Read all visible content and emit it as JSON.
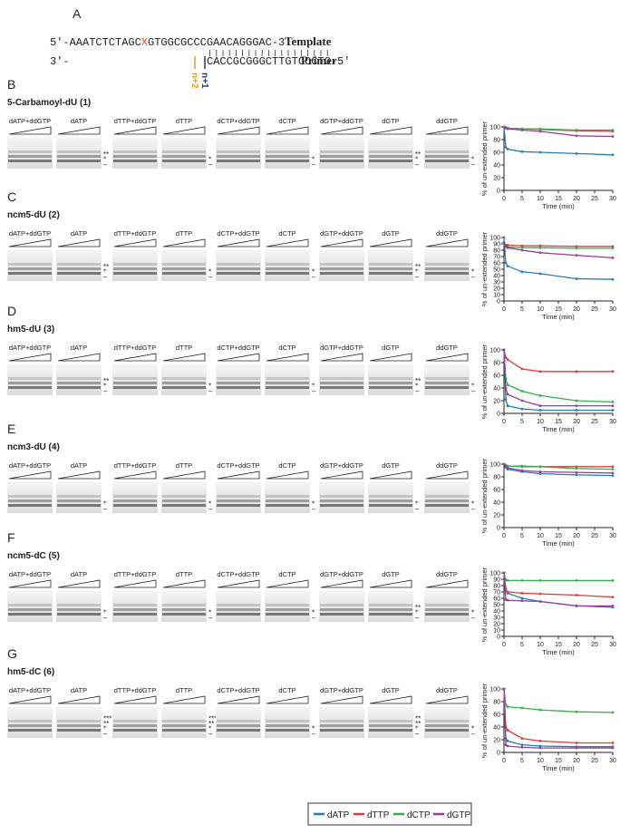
{
  "panel_a": {
    "letter": "A",
    "template": {
      "left": "5′-AAATCTCTAGC",
      "mod": "X",
      "right": "GTGGCGCCCGAACAGGGAC-3′",
      "label": "Template"
    },
    "primer": {
      "left": "3′-",
      "seq": "CACCGCGGGCTTGTCCCTG-5′",
      "label": "Primer"
    },
    "n2": "n+2",
    "n1": "n+1"
  },
  "panels": [
    {
      "letter": "B",
      "title": "5-Carbamoyl-dU (1)",
      "lanes": [
        "dATP+ddGTP",
        "dATP",
        "dTTP+ddGTP",
        "dTTP",
        "dCTP+ddGTP",
        "dCTP",
        "dGTP+ddGTP",
        "dGTP",
        "ddGTP"
      ],
      "marks": [
        [],
        [
          "**",
          "*",
          "–"
        ],
        [],
        [
          "*",
          "–"
        ],
        [],
        [
          "*",
          "–"
        ],
        [],
        [
          "**",
          "*",
          "–"
        ],
        [
          "*",
          "–"
        ]
      ]
    },
    {
      "letter": "C",
      "title": "ncm5-dU (2)",
      "lanes": [
        "dATP+ddGTP",
        "dATP",
        "dTTP+ddGTP",
        "dTTP",
        "dCTP+ddGTP",
        "dCTP",
        "dGTP+ddGTP",
        "dGTP",
        "ddGTP"
      ],
      "marks": [
        [],
        [
          "**",
          "*",
          "–"
        ],
        [],
        [
          "*",
          "–"
        ],
        [],
        [
          "*",
          "–"
        ],
        [],
        [
          "**",
          "*",
          "–"
        ],
        [
          "*",
          "–"
        ]
      ]
    },
    {
      "letter": "D",
      "title": "hm5-dU (3)",
      "lanes": [
        "dATP+ddGTP",
        "dATP",
        "dTTP+ddGTP",
        "dTTP",
        "dCTP+ddGTP",
        "dCTP",
        "dGTP+ddGTP",
        "dGTP",
        "ddGTP"
      ],
      "marks": [
        [],
        [
          "**",
          "*",
          "–"
        ],
        [],
        [
          "*",
          "–"
        ],
        [],
        [
          "*",
          "–"
        ],
        [],
        [
          "**",
          "*",
          "–"
        ],
        [
          "*",
          "–"
        ]
      ]
    },
    {
      "letter": "E",
      "title": "ncm3-dU (4)",
      "lanes": [
        "dATP+ddGTP",
        "dATP",
        "dTTP+ddGTP",
        "dTTP",
        "dCTP+ddGTP",
        "dCTP",
        "dGTP+ddGTP",
        "dGTP",
        "ddGTP"
      ],
      "marks": [
        [],
        [
          "*",
          "–"
        ],
        [],
        [
          "*",
          "–"
        ],
        [],
        [
          "*",
          "–"
        ],
        [],
        [
          "*",
          "–"
        ],
        [
          "*",
          "–"
        ]
      ]
    },
    {
      "letter": "F",
      "title": "ncm5-dC (5)",
      "lanes": [
        "dATP+ddGTP",
        "dATP",
        "dTTP+ddGTP",
        "dTTP",
        "dCTP+ddGTP",
        "dCTP",
        "dGTP+ddGTP",
        "dGTP",
        "ddGTP"
      ],
      "marks": [
        [],
        [
          "*",
          "–"
        ],
        [],
        [
          "*",
          "–"
        ],
        [],
        [
          "*",
          "–"
        ],
        [],
        [
          "**",
          "*",
          "–"
        ],
        [
          "*",
          "–"
        ]
      ]
    },
    {
      "letter": "G",
      "title": "hm5-dC (6)",
      "lanes": [
        "dATP+ddGTP",
        "dATP",
        "dTTP+ddGTP",
        "dTTP",
        "dCTP+ddGTP",
        "dCTP",
        "dGTP+ddGTP",
        "dGTP",
        "ddGTP"
      ],
      "marks": [
        [],
        [
          "***",
          "**",
          "*",
          "–"
        ],
        [],
        [
          "***",
          "**",
          "*",
          "–"
        ],
        [],
        [
          "*",
          "–"
        ],
        [],
        [
          "**",
          "**",
          "*",
          "–"
        ],
        [
          "*",
          "–"
        ]
      ]
    }
  ],
  "chart_data": [
    {
      "type": "line",
      "ylabel": "% of un-extended primer",
      "xlabel": "Time (min)",
      "x": [
        0,
        0.5,
        1,
        5,
        10,
        20,
        30
      ],
      "xlim": [
        0,
        30
      ],
      "xticks": [
        0,
        5,
        10,
        15,
        20,
        25,
        30
      ],
      "ylim": [
        0,
        100
      ],
      "yticks": [
        0,
        20,
        40,
        60,
        80,
        100
      ],
      "series": [
        {
          "name": "dATP",
          "color": "#2a7ab8",
          "values": [
            100,
            68,
            65,
            61,
            60,
            58,
            56
          ]
        },
        {
          "name": "dTTP",
          "color": "#e03a3a",
          "values": [
            100,
            99,
            98,
            97,
            96,
            94,
            93
          ]
        },
        {
          "name": "dCTP",
          "color": "#33b04a",
          "values": [
            100,
            99,
            98,
            97,
            97,
            95,
            95
          ]
        },
        {
          "name": "dGTP",
          "color": "#9a3d9c",
          "values": [
            100,
            98,
            97,
            95,
            93,
            86,
            85
          ]
        }
      ]
    },
    {
      "type": "line",
      "ylabel": "% of un-extended primer",
      "xlabel": "Time (min)",
      "x": [
        0,
        0.5,
        1,
        5,
        10,
        20,
        30
      ],
      "xlim": [
        0,
        30
      ],
      "xticks": [
        0,
        5,
        10,
        15,
        20,
        25,
        30
      ],
      "ylim": [
        0,
        100
      ],
      "yticks": [
        0,
        10,
        20,
        30,
        40,
        50,
        60,
        70,
        80,
        90,
        100
      ],
      "series": [
        {
          "name": "dATP",
          "color": "#2a7ab8",
          "values": [
            100,
            60,
            55,
            46,
            43,
            35,
            34
          ]
        },
        {
          "name": "dTTP",
          "color": "#e03a3a",
          "values": [
            92,
            88,
            88,
            87,
            87,
            86,
            86
          ]
        },
        {
          "name": "dCTP",
          "color": "#33b04a",
          "values": [
            90,
            86,
            85,
            84,
            84,
            83,
            83
          ]
        },
        {
          "name": "dGTP",
          "color": "#9a3d9c",
          "values": [
            92,
            86,
            84,
            80,
            76,
            72,
            68
          ]
        }
      ]
    },
    {
      "type": "line",
      "ylabel": "% of un-extended primer",
      "xlabel": "Time (min)",
      "x": [
        0,
        0.5,
        1,
        5,
        10,
        20,
        30
      ],
      "xlim": [
        0,
        30
      ],
      "xticks": [
        0,
        5,
        10,
        15,
        20,
        25,
        30
      ],
      "ylim": [
        0,
        100
      ],
      "yticks": [
        0,
        20,
        40,
        60,
        80,
        100
      ],
      "series": [
        {
          "name": "dATP",
          "color": "#2a7ab8",
          "values": [
            100,
            22,
            12,
            7,
            5,
            5,
            5
          ]
        },
        {
          "name": "dTTP",
          "color": "#e03a3a",
          "values": [
            100,
            88,
            85,
            70,
            66,
            66,
            66
          ]
        },
        {
          "name": "dCTP",
          "color": "#33b04a",
          "values": [
            100,
            55,
            45,
            35,
            28,
            20,
            18
          ]
        },
        {
          "name": "dGTP",
          "color": "#9a3d9c",
          "values": [
            100,
            40,
            30,
            20,
            12,
            12,
            12
          ]
        }
      ]
    },
    {
      "type": "line",
      "ylabel": "% of un-extended primer",
      "xlabel": "Time (min)",
      "x": [
        0,
        0.5,
        1,
        5,
        10,
        20,
        30
      ],
      "xlim": [
        0,
        30
      ],
      "xticks": [
        0,
        5,
        10,
        15,
        20,
        25,
        30
      ],
      "ylim": [
        0,
        100
      ],
      "yticks": [
        0,
        20,
        40,
        60,
        80,
        100
      ],
      "series": [
        {
          "name": "dATP",
          "color": "#2a7ab8",
          "values": [
            100,
            95,
            92,
            88,
            85,
            83,
            82
          ]
        },
        {
          "name": "dTTP",
          "color": "#e03a3a",
          "values": [
            100,
            98,
            97,
            97,
            96,
            96,
            96
          ]
        },
        {
          "name": "dCTP",
          "color": "#33b04a",
          "values": [
            100,
            98,
            97,
            96,
            96,
            93,
            92
          ]
        },
        {
          "name": "dGTP",
          "color": "#9a3d9c",
          "values": [
            100,
            96,
            94,
            90,
            88,
            87,
            86
          ]
        }
      ]
    },
    {
      "type": "line",
      "ylabel": "% of un-extended primer",
      "xlabel": "Time (min)",
      "x": [
        0,
        0.5,
        1,
        5,
        10,
        20,
        30
      ],
      "xlim": [
        0,
        30
      ],
      "xticks": [
        0,
        5,
        10,
        15,
        20,
        25,
        30
      ],
      "ylim": [
        0,
        100
      ],
      "yticks": [
        0,
        10,
        20,
        30,
        40,
        50,
        60,
        70,
        80,
        90,
        100
      ],
      "series": [
        {
          "name": "dATP",
          "color": "#2a7ab8",
          "values": [
            100,
            75,
            68,
            60,
            55,
            48,
            46
          ]
        },
        {
          "name": "dTTP",
          "color": "#e03a3a",
          "values": [
            100,
            72,
            70,
            68,
            67,
            65,
            62
          ]
        },
        {
          "name": "dCTP",
          "color": "#33b04a",
          "values": [
            100,
            89,
            88,
            88,
            88,
            88,
            88
          ]
        },
        {
          "name": "dGTP",
          "color": "#9a3d9c",
          "values": [
            100,
            58,
            57,
            56,
            55,
            48,
            48
          ]
        }
      ]
    },
    {
      "type": "line",
      "ylabel": "% of un-extended primer",
      "xlabel": "Time (min)",
      "x": [
        0,
        0.5,
        1,
        5,
        10,
        20,
        30
      ],
      "xlim": [
        0,
        30
      ],
      "xticks": [
        0,
        5,
        10,
        15,
        20,
        25,
        30
      ],
      "ylim": [
        0,
        100
      ],
      "yticks": [
        0,
        20,
        40,
        60,
        80,
        100
      ],
      "series": [
        {
          "name": "dATP",
          "color": "#2a7ab8",
          "values": [
            100,
            22,
            18,
            12,
            10,
            9,
            9
          ]
        },
        {
          "name": "dTTP",
          "color": "#e03a3a",
          "values": [
            100,
            40,
            35,
            22,
            18,
            15,
            15
          ]
        },
        {
          "name": "dCTP",
          "color": "#33b04a",
          "values": [
            100,
            75,
            72,
            70,
            67,
            64,
            63
          ]
        },
        {
          "name": "dGTP",
          "color": "#9a3d9c",
          "values": [
            100,
            12,
            10,
            8,
            7,
            7,
            7
          ]
        }
      ]
    }
  ]
}
